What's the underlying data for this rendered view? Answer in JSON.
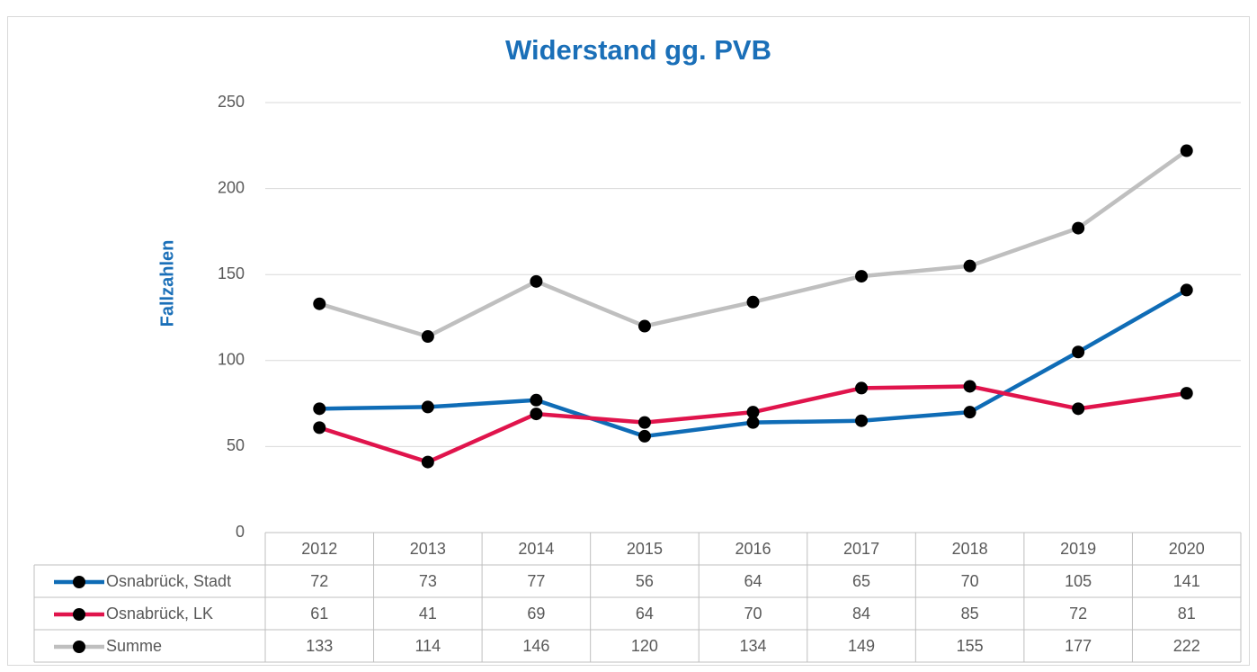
{
  "chart_data": {
    "type": "line",
    "title": "Widerstand gg. PVB",
    "y_label": "Fallzahlen",
    "categories": [
      "2012",
      "2013",
      "2014",
      "2015",
      "2016",
      "2017",
      "2018",
      "2019",
      "2020"
    ],
    "series": [
      {
        "name": "Osnabrück, Stadt",
        "color": "#0f6cb6",
        "values": [
          72,
          73,
          77,
          56,
          64,
          65,
          70,
          105,
          141
        ]
      },
      {
        "name": "Osnabrück, LK",
        "color": "#e0144c",
        "values": [
          61,
          41,
          69,
          64,
          70,
          84,
          85,
          72,
          81
        ]
      },
      {
        "name": "Summe",
        "color": "#bfbfbf",
        "values": [
          133,
          114,
          146,
          120,
          134,
          149,
          155,
          177,
          222
        ]
      }
    ],
    "ylim": [
      0,
      250
    ],
    "yticks": [
      0,
      50,
      100,
      150,
      200,
      250
    ],
    "grid": true,
    "data_table": true
  }
}
